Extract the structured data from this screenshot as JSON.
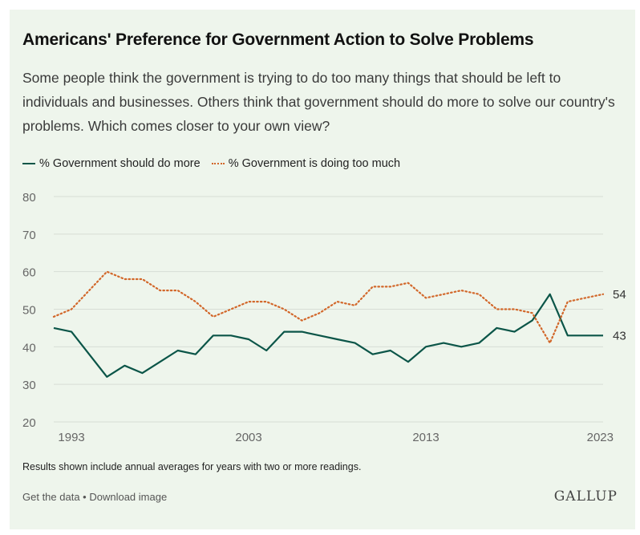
{
  "footnote": "Results shown include annual averages for years with two or more readings.",
  "footer": {
    "get_data": "Get the data",
    "separator": " • ",
    "download": "Download image",
    "logo": "GALLUP"
  },
  "colors": {
    "background": "#eef5ec",
    "more": "#0b5548",
    "too_much": "#d2672a",
    "grid": "#d7ddd5"
  },
  "chart_data": {
    "type": "line",
    "title": "Americans' Preference for Government Action to Solve Problems",
    "subtitle": "Some people think the government is trying to do too many things that should be left to individuals and businesses. Others think that government should do more to solve our country's problems. Which comes closer to your own view?",
    "xlabel": "",
    "ylabel": "",
    "x": [
      1992,
      1993,
      1995,
      1996,
      1997,
      1998,
      1999,
      2000,
      2001,
      2002,
      2003,
      2004,
      2005,
      2006,
      2007,
      2008,
      2009,
      2010,
      2011,
      2012,
      2013,
      2014,
      2015,
      2016,
      2017,
      2018,
      2019,
      2020,
      2021,
      2022,
      2023
    ],
    "xlim": [
      1992,
      2023
    ],
    "ylim": [
      20,
      80
    ],
    "y_ticks": [
      20,
      30,
      40,
      50,
      60,
      70,
      80
    ],
    "x_ticks": [
      1993,
      2003,
      2013,
      2023
    ],
    "grid": true,
    "legend": "top-left",
    "series": [
      {
        "name": "% Government should do more",
        "style": "solid",
        "values": [
          45,
          44,
          32,
          35,
          33,
          36,
          39,
          38,
          43,
          43,
          42,
          39,
          44,
          44,
          43,
          42,
          41,
          38,
          39,
          36,
          40,
          41,
          40,
          41,
          45,
          44,
          47,
          54,
          43,
          43,
          43
        ],
        "end_label": "43"
      },
      {
        "name": "% Government is doing too much",
        "style": "dotted",
        "values": [
          48,
          50,
          60,
          58,
          58,
          55,
          55,
          52,
          48,
          50,
          52,
          52,
          50,
          47,
          49,
          52,
          51,
          56,
          56,
          57,
          53,
          54,
          55,
          54,
          50,
          50,
          49,
          41,
          52,
          53,
          54
        ],
        "end_label": "54"
      }
    ]
  }
}
